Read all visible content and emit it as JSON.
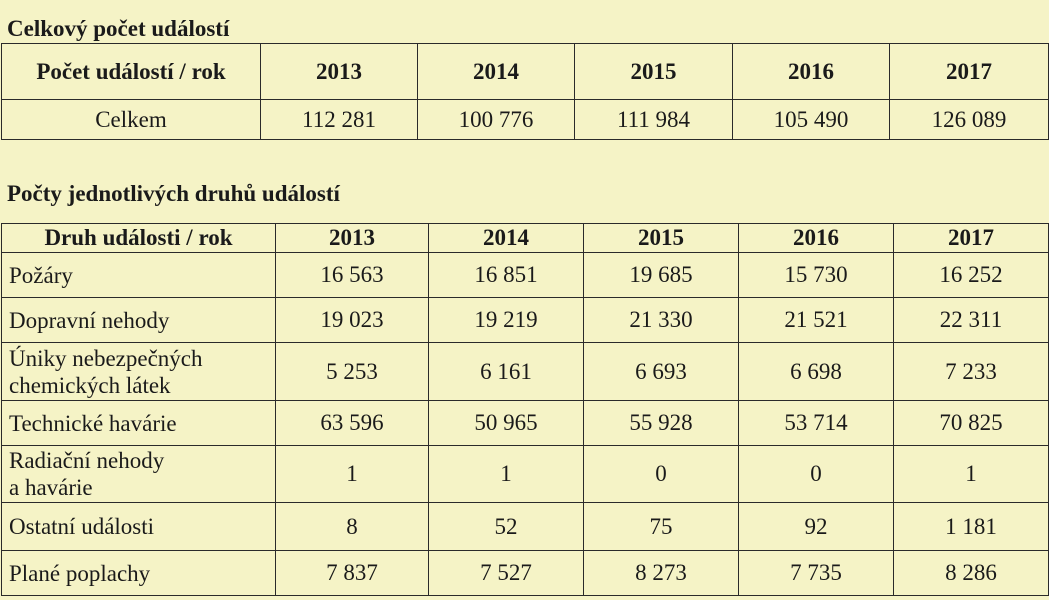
{
  "section1": {
    "title": "Celkový počet událostí",
    "header": {
      "label": "Počet událostí / rok",
      "years": [
        "2013",
        "2014",
        "2015",
        "2016",
        "2017"
      ]
    },
    "row": {
      "label": "Celkem",
      "values": [
        "112 281",
        "100 776",
        "111 984",
        "105 490",
        "126 089"
      ]
    }
  },
  "section2": {
    "title": "Počty jednotlivých druhů událostí",
    "header": {
      "label": "Druh události / rok",
      "years": [
        "2013",
        "2014",
        "2015",
        "2016",
        "2017"
      ]
    },
    "rows": [
      {
        "label1": "Požáry",
        "label2": "",
        "values": [
          "16 563",
          "16 851",
          "19 685",
          "15 730",
          "16 252"
        ]
      },
      {
        "label1": "Dopravní nehody",
        "label2": "",
        "values": [
          "19 023",
          "19 219",
          "21 330",
          "21 521",
          "22 311"
        ]
      },
      {
        "label1": "Úniky nebezpečných",
        "label2": "chemických látek",
        "values": [
          "5 253",
          "6 161",
          "6 693",
          "6 698",
          "7 233"
        ]
      },
      {
        "label1": "Technické havárie",
        "label2": "",
        "values": [
          "63 596",
          "50 965",
          "55 928",
          "53 714",
          "70 825"
        ]
      },
      {
        "label1": "Radiační nehody",
        "label2": "a havárie",
        "values": [
          "1",
          "1",
          "0",
          "0",
          "1"
        ]
      },
      {
        "label1": "Ostatní události",
        "label2": "",
        "values": [
          "8",
          "52",
          "75",
          "92",
          "1 181"
        ]
      },
      {
        "label1": "Plané poplachy",
        "label2": "",
        "values": [
          "7 837",
          "7 527",
          "8 273",
          "7 735",
          "8 286"
        ]
      }
    ]
  }
}
